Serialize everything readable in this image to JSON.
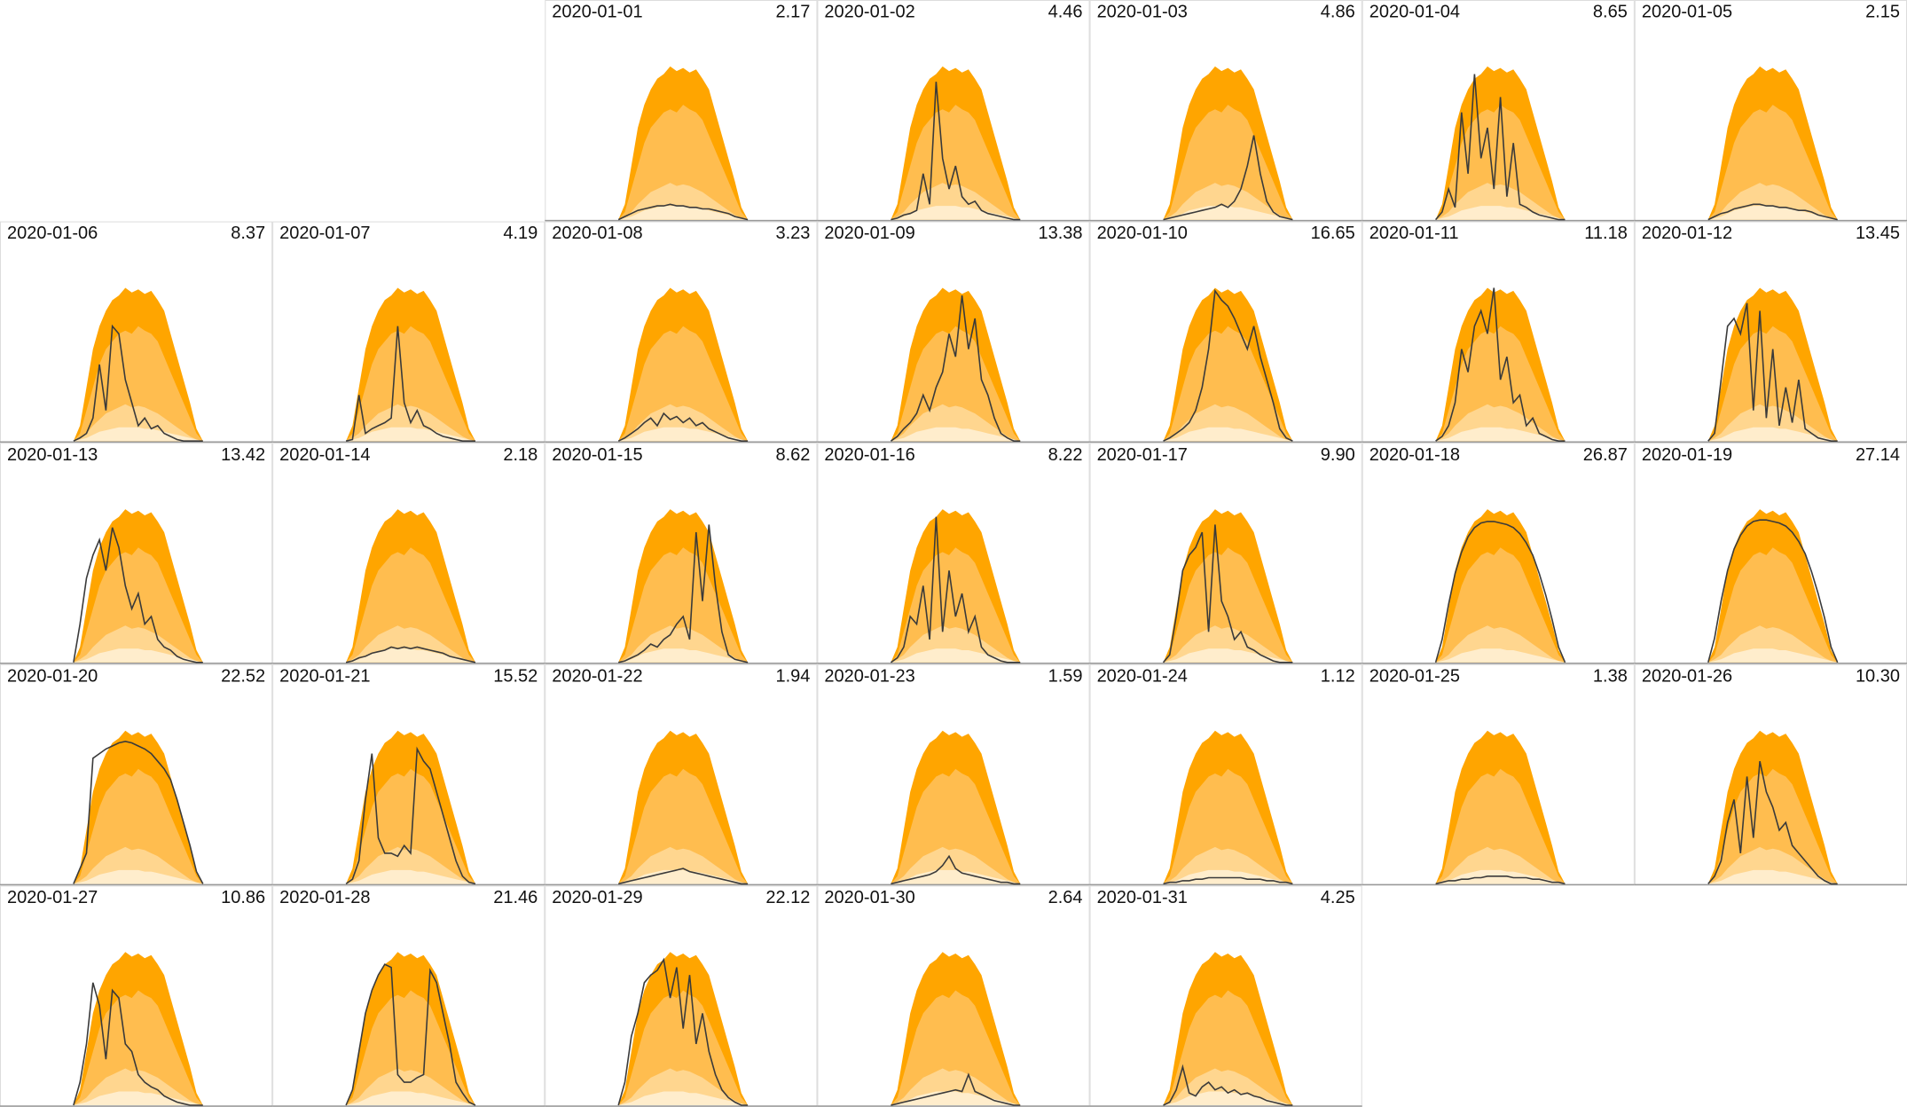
{
  "chart_data": {
    "type": "area",
    "ylim": [
      0,
      100
    ],
    "line_color": "#3a3a3a",
    "bands": [
      {
        "color": "#ffa500",
        "values": [
          0,
          10,
          35,
          60,
          75,
          85,
          92,
          95,
          100,
          97,
          99,
          96,
          98,
          92,
          85,
          70,
          55,
          40,
          25,
          8,
          0
        ]
      },
      {
        "color": "#ffbd4f",
        "values": [
          0,
          5,
          20,
          35,
          50,
          60,
          65,
          70,
          72,
          70,
          75,
          72,
          70,
          65,
          55,
          45,
          35,
          25,
          15,
          5,
          0
        ]
      },
      {
        "color": "#ffd68f",
        "values": [
          0,
          2,
          5,
          10,
          14,
          18,
          20,
          22,
          24,
          22,
          23,
          22,
          20,
          18,
          15,
          12,
          9,
          6,
          3,
          1,
          0
        ]
      },
      {
        "color": "#ffedcc",
        "values": [
          0,
          1,
          2,
          4,
          6,
          7,
          8,
          9,
          9,
          9,
          9,
          8,
          8,
          7,
          6,
          5,
          4,
          3,
          2,
          1,
          0
        ]
      }
    ],
    "panels": [
      {
        "date": "2020-01-01",
        "total": 2.17,
        "values": [
          0,
          2,
          4,
          6,
          7,
          8,
          9,
          9,
          10,
          9,
          9,
          8,
          8,
          7,
          7,
          6,
          5,
          4,
          2,
          1,
          0
        ]
      },
      {
        "date": "2020-01-02",
        "total": 4.46,
        "values": [
          0,
          1,
          3,
          4,
          6,
          30,
          10,
          90,
          40,
          20,
          35,
          15,
          10,
          12,
          6,
          4,
          3,
          2,
          1,
          0,
          0
        ]
      },
      {
        "date": "2020-01-03",
        "total": 4.86,
        "values": [
          0,
          1,
          2,
          3,
          4,
          5,
          6,
          7,
          8,
          10,
          8,
          12,
          20,
          35,
          55,
          30,
          12,
          5,
          2,
          1,
          0
        ]
      },
      {
        "date": "2020-01-04",
        "total": 8.65,
        "values": [
          0,
          5,
          20,
          8,
          70,
          30,
          95,
          40,
          60,
          20,
          80,
          15,
          50,
          10,
          8,
          5,
          3,
          2,
          1,
          0,
          0
        ]
      },
      {
        "date": "2020-01-05",
        "total": 2.15,
        "values": [
          0,
          2,
          4,
          5,
          7,
          8,
          9,
          10,
          10,
          9,
          9,
          8,
          8,
          7,
          6,
          6,
          5,
          3,
          2,
          1,
          0
        ]
      },
      {
        "date": "2020-01-06",
        "total": 8.37,
        "values": [
          0,
          2,
          5,
          15,
          50,
          20,
          75,
          70,
          40,
          25,
          10,
          15,
          8,
          10,
          5,
          3,
          1,
          0,
          0,
          0,
          0
        ]
      },
      {
        "date": "2020-01-07",
        "total": 4.19,
        "values": [
          0,
          1,
          30,
          5,
          8,
          10,
          12,
          15,
          75,
          25,
          12,
          20,
          10,
          8,
          5,
          3,
          2,
          1,
          0,
          0,
          0
        ]
      },
      {
        "date": "2020-01-08",
        "total": 3.23,
        "values": [
          0,
          2,
          5,
          8,
          12,
          15,
          10,
          18,
          14,
          16,
          12,
          15,
          10,
          12,
          8,
          6,
          4,
          2,
          1,
          0,
          0
        ]
      },
      {
        "date": "2020-01-09",
        "total": 13.38,
        "values": [
          0,
          3,
          8,
          12,
          18,
          30,
          20,
          35,
          45,
          70,
          55,
          95,
          60,
          80,
          40,
          30,
          15,
          5,
          2,
          0,
          0
        ]
      },
      {
        "date": "2020-01-10",
        "total": 16.65,
        "values": [
          0,
          2,
          5,
          8,
          12,
          20,
          35,
          60,
          98,
          92,
          88,
          80,
          70,
          60,
          75,
          55,
          40,
          25,
          8,
          2,
          0
        ]
      },
      {
        "date": "2020-01-11",
        "total": 11.18,
        "values": [
          0,
          3,
          10,
          25,
          60,
          45,
          75,
          85,
          70,
          100,
          40,
          55,
          25,
          30,
          10,
          15,
          5,
          3,
          1,
          0,
          0
        ]
      },
      {
        "date": "2020-01-12",
        "total": 13.45,
        "values": [
          0,
          5,
          40,
          75,
          80,
          70,
          90,
          20,
          85,
          15,
          60,
          10,
          35,
          12,
          40,
          8,
          5,
          2,
          1,
          0,
          0
        ]
      },
      {
        "date": "2020-01-13",
        "total": 13.42,
        "values": [
          0,
          25,
          55,
          70,
          80,
          60,
          88,
          75,
          50,
          35,
          45,
          25,
          30,
          15,
          10,
          8,
          4,
          2,
          1,
          0,
          0
        ]
      },
      {
        "date": "2020-01-14",
        "total": 2.18,
        "values": [
          0,
          1,
          3,
          4,
          6,
          7,
          8,
          10,
          9,
          10,
          9,
          10,
          9,
          8,
          7,
          6,
          4,
          3,
          2,
          1,
          0
        ]
      },
      {
        "date": "2020-01-15",
        "total": 8.62,
        "values": [
          0,
          1,
          3,
          5,
          8,
          12,
          10,
          15,
          18,
          25,
          30,
          15,
          85,
          40,
          90,
          50,
          20,
          5,
          2,
          1,
          0
        ]
      },
      {
        "date": "2020-01-16",
        "total": 8.22,
        "values": [
          0,
          3,
          10,
          30,
          25,
          50,
          15,
          95,
          20,
          60,
          30,
          45,
          20,
          30,
          10,
          5,
          3,
          1,
          0,
          0,
          0
        ]
      },
      {
        "date": "2020-01-17",
        "total": {
          "value": 9.9,
          "label": "9.90"
        },
        "values": [
          0,
          5,
          30,
          60,
          70,
          75,
          85,
          20,
          90,
          40,
          30,
          15,
          20,
          10,
          8,
          5,
          3,
          1,
          0,
          0,
          0
        ]
      },
      {
        "date": "2020-01-18",
        "total": 26.87,
        "values": [
          0,
          15,
          38,
          58,
          72,
          82,
          88,
          91,
          92,
          92,
          91,
          90,
          88,
          84,
          78,
          70,
          58,
          44,
          28,
          10,
          0
        ]
      },
      {
        "date": "2020-01-19",
        "total": 27.14,
        "values": [
          0,
          16,
          40,
          60,
          74,
          83,
          89,
          92,
          93,
          93,
          92,
          91,
          89,
          85,
          79,
          71,
          59,
          45,
          29,
          10,
          0
        ]
      },
      {
        "date": "2020-01-20",
        "total": 22.52,
        "values": [
          0,
          10,
          20,
          82,
          85,
          88,
          90,
          92,
          93,
          92,
          90,
          88,
          85,
          80,
          75,
          68,
          55,
          40,
          25,
          8,
          0
        ]
      },
      {
        "date": "2020-01-21",
        "total": 15.52,
        "values": [
          0,
          3,
          15,
          55,
          85,
          30,
          20,
          20,
          18,
          25,
          20,
          88,
          80,
          75,
          60,
          45,
          30,
          15,
          5,
          1,
          0
        ]
      },
      {
        "date": "2020-01-22",
        "total": 1.94,
        "values": [
          0,
          1,
          2,
          3,
          4,
          5,
          6,
          7,
          8,
          9,
          10,
          8,
          7,
          6,
          5,
          4,
          3,
          2,
          1,
          0,
          0
        ]
      },
      {
        "date": "2020-01-23",
        "total": 1.59,
        "values": [
          0,
          1,
          2,
          3,
          4,
          5,
          6,
          8,
          12,
          18,
          10,
          7,
          6,
          5,
          4,
          3,
          2,
          1,
          1,
          0,
          0
        ]
      },
      {
        "date": "2020-01-24",
        "total": 1.12,
        "values": [
          0,
          1,
          1,
          2,
          2,
          3,
          3,
          4,
          4,
          4,
          4,
          4,
          4,
          3,
          3,
          3,
          2,
          2,
          1,
          1,
          0
        ]
      },
      {
        "date": "2020-01-25",
        "total": 1.38,
        "values": [
          0,
          1,
          2,
          2,
          3,
          3,
          4,
          4,
          5,
          5,
          5,
          5,
          4,
          4,
          4,
          3,
          3,
          2,
          1,
          1,
          0
        ]
      },
      {
        "date": "2020-01-26",
        "total": {
          "value": 10.3,
          "label": "10.30"
        },
        "values": [
          0,
          5,
          15,
          40,
          55,
          20,
          70,
          30,
          80,
          60,
          50,
          35,
          40,
          25,
          20,
          15,
          10,
          5,
          2,
          0,
          0
        ]
      },
      {
        "date": "2020-01-27",
        "total": 10.86,
        "values": [
          0,
          15,
          40,
          80,
          65,
          30,
          75,
          70,
          40,
          35,
          20,
          15,
          12,
          10,
          6,
          4,
          2,
          1,
          0,
          0,
          0
        ]
      },
      {
        "date": "2020-01-28",
        "total": 21.46,
        "values": [
          0,
          10,
          35,
          60,
          75,
          85,
          92,
          90,
          20,
          15,
          15,
          18,
          20,
          88,
          80,
          60,
          40,
          15,
          8,
          2,
          0
        ]
      },
      {
        "date": "2020-01-29",
        "total": 22.12,
        "values": [
          0,
          15,
          45,
          60,
          80,
          85,
          88,
          95,
          70,
          90,
          50,
          85,
          40,
          60,
          35,
          20,
          10,
          5,
          2,
          0,
          0
        ]
      },
      {
        "date": "2020-01-30",
        "total": 2.64,
        "values": [
          0,
          1,
          2,
          3,
          4,
          5,
          6,
          7,
          8,
          9,
          10,
          9,
          20,
          9,
          7,
          5,
          3,
          2,
          1,
          0,
          0
        ]
      },
      {
        "date": "2020-01-31",
        "total": 4.25,
        "values": [
          0,
          2,
          10,
          25,
          8,
          6,
          12,
          15,
          10,
          12,
          8,
          10,
          7,
          8,
          6,
          5,
          3,
          2,
          1,
          0,
          0
        ]
      }
    ]
  }
}
